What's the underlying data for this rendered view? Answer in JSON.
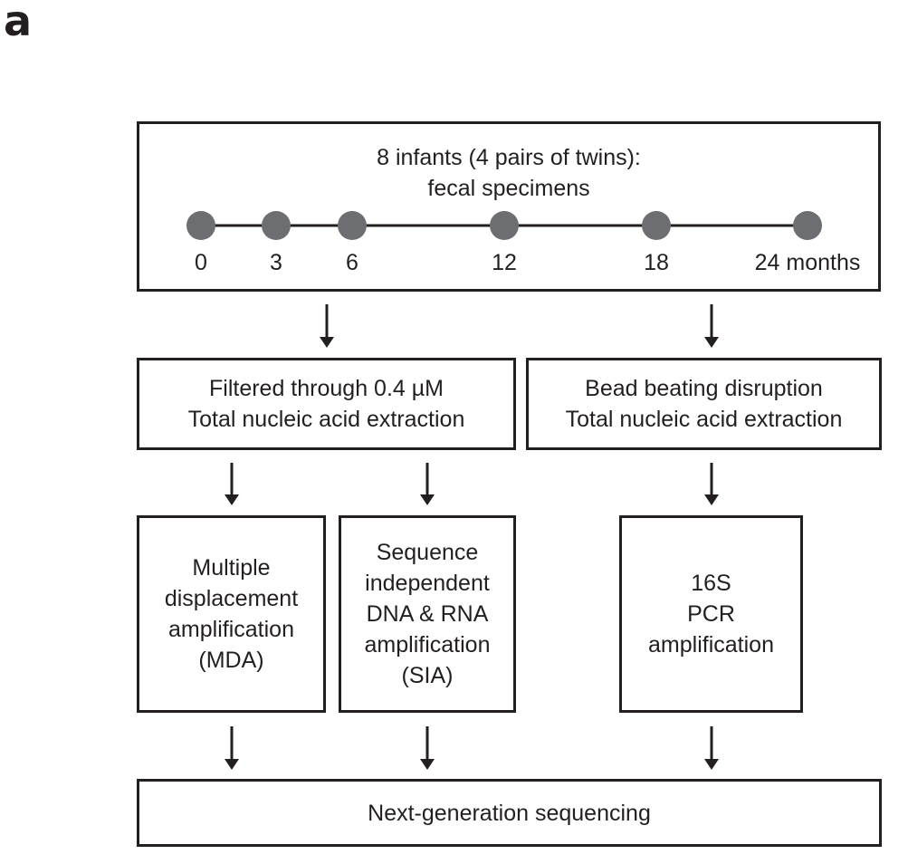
{
  "panel_label": "a",
  "top_box": {
    "line1": "8 infants (4 pairs of twins):",
    "line2": "fecal specimens"
  },
  "timeline": {
    "points": [
      "0",
      "3",
      "6",
      "12",
      "18",
      "24 months"
    ],
    "point_color": "#6d6e71"
  },
  "extraction": {
    "left": {
      "line1": "Filtered through 0.4 µM",
      "line2": "Total nucleic acid extraction"
    },
    "right": {
      "line1": "Bead beating disruption",
      "line2": "Total nucleic acid extraction"
    }
  },
  "methods": {
    "mda": [
      "Multiple",
      "displacement",
      "amplification",
      "(MDA)"
    ],
    "sia": [
      "Sequence",
      "independent",
      "DNA & RNA",
      "amplification",
      "(SIA)"
    ],
    "pcr": [
      "16S",
      "PCR",
      "amplification"
    ]
  },
  "sequencing": {
    "label": "Next-generation sequencing"
  }
}
